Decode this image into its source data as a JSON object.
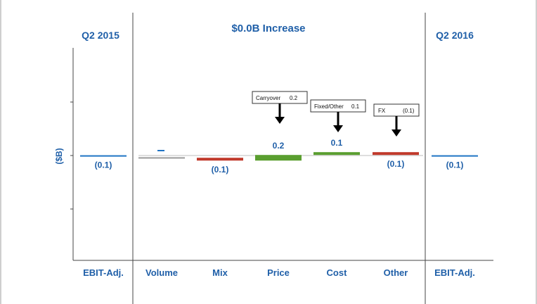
{
  "headers": {
    "left": "Q2 2015",
    "center": "$0.0B Increase",
    "right": "Q2 2016"
  },
  "ylabel": "($B)",
  "callouts": [
    {
      "text": "Carryover",
      "value": "0.2"
    },
    {
      "text": "Fixed/Other",
      "value": "0.1"
    },
    {
      "text": "FX",
      "value": "(0.1)"
    }
  ],
  "colors": {
    "blue": "#1f74c4",
    "red": "#c0392b",
    "green": "#5a9e2f",
    "gray": "#9a9a9a",
    "text_blue": "#1f5fa8"
  },
  "chart_data": {
    "type": "bar",
    "subtype": "waterfall",
    "ylabel": "($B)",
    "categories": [
      "EBIT-Adj.",
      "Volume",
      "Mix",
      "Price",
      "Cost",
      "Other",
      "EBIT-Adj."
    ],
    "values": [
      -0.1,
      0.0,
      -0.1,
      0.2,
      0.1,
      -0.1,
      -0.1
    ],
    "labels": [
      "(0.1)",
      "",
      "(0.1)",
      "0.2",
      "0.1",
      "(0.1)",
      "(0.1)"
    ],
    "bar_colors": [
      "blue",
      "gray",
      "red",
      "green",
      "green",
      "red",
      "blue"
    ],
    "bars": [
      {
        "lo": -0.01,
        "hi": 0.01
      },
      {
        "lo": -0.08,
        "hi": -0.06
      },
      {
        "lo": -0.18,
        "hi": -0.08
      },
      {
        "lo": -0.18,
        "hi": 0.02
      },
      {
        "lo": 0.02,
        "hi": 0.12
      },
      {
        "lo": 0.02,
        "hi": 0.12
      },
      {
        "lo": -0.01,
        "hi": 0.01
      }
    ],
    "ylim": [
      -1.9,
      1.9
    ],
    "grid": false,
    "legend": "none"
  }
}
